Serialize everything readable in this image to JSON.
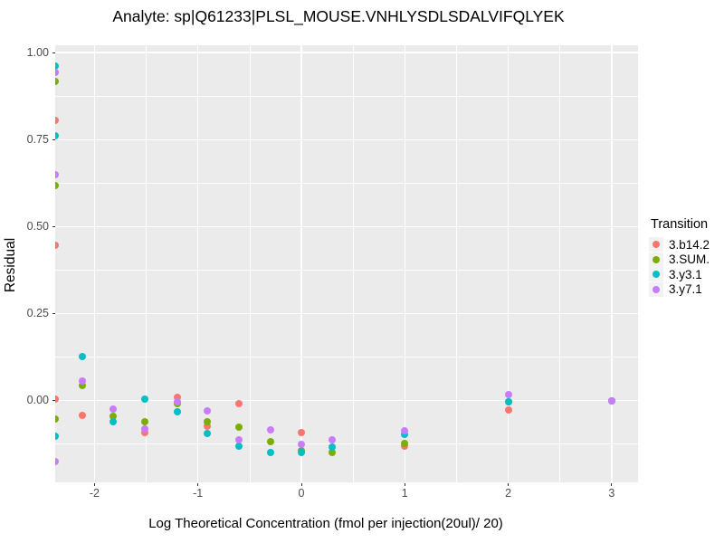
{
  "title": "Analyte: sp|Q61233|PLSL_MOUSE.VNHLYSDLSDALVIFQLYEK",
  "chart_data": {
    "type": "scatter",
    "title": "Analyte: sp|Q61233|PLSL_MOUSE.VNHLYSDLSDALVIFQLYEK",
    "xlabel": "Log Theoretical Concentration (fmol per injection(20ul)/ 20)",
    "ylabel": "Residual",
    "xlim": [
      -2.38,
      3.255
    ],
    "ylim": [
      -0.235,
      1.021
    ],
    "x_ticks": {
      "values": [
        -2,
        -1,
        0,
        1,
        2,
        3
      ],
      "labels": [
        "-2",
        "-1",
        "0",
        "1",
        "2",
        "3"
      ]
    },
    "y_ticks": {
      "values": [
        0,
        0.25,
        0.5,
        0.75,
        1.0
      ],
      "labels": [
        "0.00",
        "0.25",
        "0.50",
        "0.75",
        "1.00"
      ]
    },
    "x_minor": [
      -1.5,
      -0.5,
      0.5,
      1.5,
      2.5
    ],
    "y_minor": [
      -0.125,
      0.125,
      0.375,
      0.625,
      0.875
    ],
    "grid": true,
    "panel_bg": "#EBEBEB",
    "grid_color": "#FFFFFF",
    "legend": {
      "title": "Transition",
      "position": "right"
    },
    "series": [
      {
        "name": "3.b14.2",
        "color": "#F8766D",
        "points": [
          [
            -2.38,
            0.805
          ],
          [
            -2.38,
            0.447
          ],
          [
            -2.38,
            0.005
          ],
          [
            -2.12,
            -0.042
          ],
          [
            -1.51,
            -0.093
          ],
          [
            -1.2,
            0.01
          ],
          [
            -0.91,
            -0.075
          ],
          [
            -0.6,
            -0.008
          ],
          [
            0,
            -0.093
          ],
          [
            1,
            -0.132
          ],
          [
            2,
            -0.026
          ],
          [
            3,
            0.0
          ]
        ]
      },
      {
        "name": "3.SUM.",
        "color": "#7CAE00",
        "points": [
          [
            -2.38,
            0.917
          ],
          [
            -2.38,
            0.618
          ],
          [
            -2.38,
            -0.052
          ],
          [
            -2.12,
            0.044
          ],
          [
            -1.82,
            -0.045
          ],
          [
            -1.51,
            -0.062
          ],
          [
            -1.2,
            -0.008
          ],
          [
            -0.91,
            -0.062
          ],
          [
            -0.6,
            -0.077
          ],
          [
            -0.3,
            -0.119
          ],
          [
            0,
            -0.143
          ],
          [
            0.3,
            -0.149
          ],
          [
            1,
            -0.123
          ],
          [
            2,
            -0.003
          ],
          [
            3,
            0.0
          ]
        ]
      },
      {
        "name": "3.y3.1",
        "color": "#00BFC4",
        "points": [
          [
            -2.38,
            0.96
          ],
          [
            -2.38,
            0.761
          ],
          [
            -2.38,
            -0.103
          ],
          [
            -2.12,
            0.127
          ],
          [
            -1.82,
            -0.06
          ],
          [
            -1.51,
            0.003
          ],
          [
            -1.2,
            -0.032
          ],
          [
            -0.91,
            -0.094
          ],
          [
            -0.6,
            -0.13
          ],
          [
            -0.3,
            -0.149
          ],
          [
            0,
            -0.15
          ],
          [
            0.3,
            -0.134
          ],
          [
            1,
            -0.097
          ],
          [
            2,
            -0.003
          ],
          [
            3,
            0.0
          ]
        ]
      },
      {
        "name": "3.y7.1",
        "color": "#C77CFF",
        "points": [
          [
            -2.38,
            0.943
          ],
          [
            -2.38,
            0.649
          ],
          [
            -2.38,
            -0.175
          ],
          [
            -2.12,
            0.055
          ],
          [
            -1.82,
            -0.025
          ],
          [
            -1.51,
            -0.081
          ],
          [
            -1.2,
            -0.003
          ],
          [
            -0.91,
            -0.029
          ],
          [
            -0.6,
            -0.114
          ],
          [
            -0.3,
            -0.084
          ],
          [
            0,
            -0.125
          ],
          [
            0.3,
            -0.113
          ],
          [
            1,
            -0.086
          ],
          [
            2,
            0.017
          ],
          [
            3,
            0.0
          ]
        ]
      }
    ]
  }
}
